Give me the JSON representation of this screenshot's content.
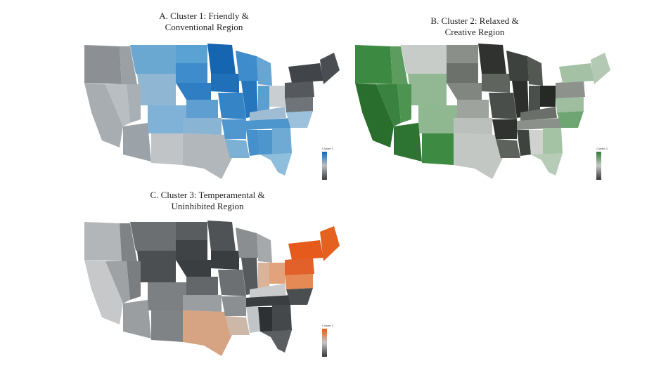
{
  "panels": [
    {
      "id": "A",
      "title_line1": "A. Cluster 1: Friendly &",
      "title_line2": "Conventional Region",
      "legend_title": "Cluster 1",
      "colors": {
        "low": "#3a3a3a",
        "mid": "#b9c0c6",
        "high": "#1565b0"
      }
    },
    {
      "id": "B",
      "title_line1": "B. Cluster 2: Relaxed &",
      "title_line2": "Creative Region",
      "legend_title": "Cluster 2",
      "colors": {
        "low": "#353535",
        "mid": "#c3c7c3",
        "high": "#2e7d32"
      }
    },
    {
      "id": "C",
      "title_line1": "C. Cluster 3: Temperamental &",
      "title_line2": "Uninhibited Region",
      "legend_title": "Cluster 3",
      "colors": {
        "low": "#353535",
        "mid": "#c5c5c5",
        "high": "#e65a1c"
      }
    }
  ]
}
